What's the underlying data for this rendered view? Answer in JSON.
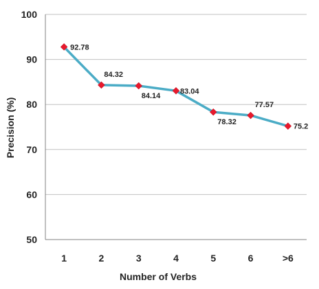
{
  "chart_data": {
    "type": "line",
    "title": "",
    "xlabel": "Number of Verbs",
    "ylabel": "Precision (%)",
    "categories": [
      "1",
      "2",
      "3",
      "4",
      "5",
      "6",
      ">6"
    ],
    "series": [
      {
        "values": [
          92.78,
          84.32,
          84.14,
          83.04,
          78.32,
          77.57,
          75.2
        ],
        "labels": [
          "92.78",
          "84.32",
          "84.14",
          "83.04",
          "78.32",
          "77.57",
          "75.2"
        ]
      }
    ],
    "ylim": [
      50,
      100
    ],
    "yticks": [
      "50",
      "60",
      "70",
      "80",
      "90",
      "100"
    ],
    "grid": "horizontal",
    "legend": "none",
    "colors": {
      "line": "#4bacc6",
      "marker": "#e8192c",
      "grid": "#c0c0c0",
      "axis": "#808080"
    }
  }
}
